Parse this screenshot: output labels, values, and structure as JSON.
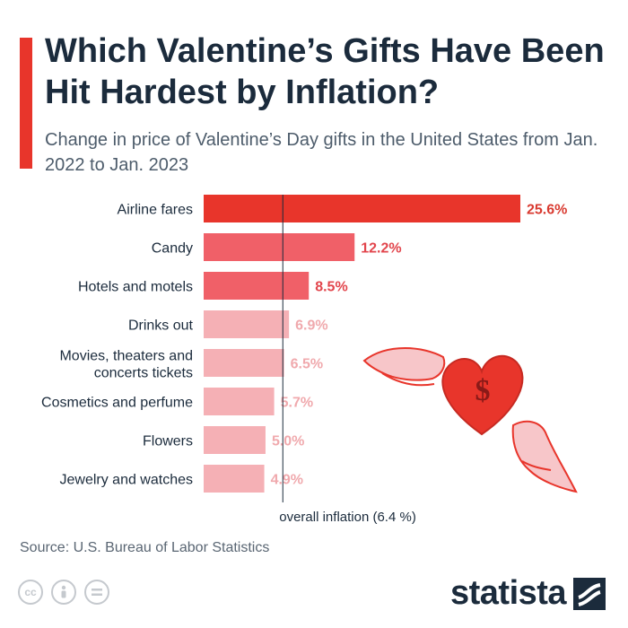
{
  "title": "Which Valentine’s Gifts Have Been Hit Hardest by Inflation?",
  "subtitle": "Change in price of Valentine’s Day gifts in the United States from Jan. 2022 to Jan. 2023",
  "source": "Source: U.S. Bureau of Labor Statistics",
  "brand": "statista",
  "license_icons": [
    "cc-icon",
    "attribution-icon",
    "no-derivatives-icon"
  ],
  "colors": {
    "accent": "#e8352b",
    "bar_high": "#e8352b",
    "bar_mid": "#f06068",
    "bar_low": "#f5b0b5",
    "label_high": "#d93a30",
    "label_mid": "#e2454c",
    "label_low": "#f0a9ad",
    "reference_line": "#1b2b3c"
  },
  "chart_data": {
    "type": "bar",
    "orientation": "horizontal",
    "categories": [
      "Airline fares",
      "Candy",
      "Hotels and motels",
      "Drinks out",
      "Movies, theaters and concerts tickets",
      "Cosmetics and perfume",
      "Flowers",
      "Jewelry and watches"
    ],
    "category_lines": [
      [
        "Airline fares"
      ],
      [
        "Candy"
      ],
      [
        "Hotels and motels"
      ],
      [
        "Drinks out"
      ],
      [
        "Movies, theaters and",
        "concerts tickets"
      ],
      [
        "Cosmetics and perfume"
      ],
      [
        "Flowers"
      ],
      [
        "Jewelry and watches"
      ]
    ],
    "values": [
      25.6,
      12.2,
      8.5,
      6.9,
      6.5,
      5.7,
      5.0,
      4.9
    ],
    "value_labels": [
      "25.6%",
      "12.2%",
      "8.5%",
      "6.9%",
      "6.5%",
      "5.7%",
      "5.0%",
      "4.9%"
    ],
    "xlim": [
      0,
      25.6
    ],
    "reference": {
      "value": 6.4,
      "label": "overall inflation (6.4 %)"
    }
  }
}
